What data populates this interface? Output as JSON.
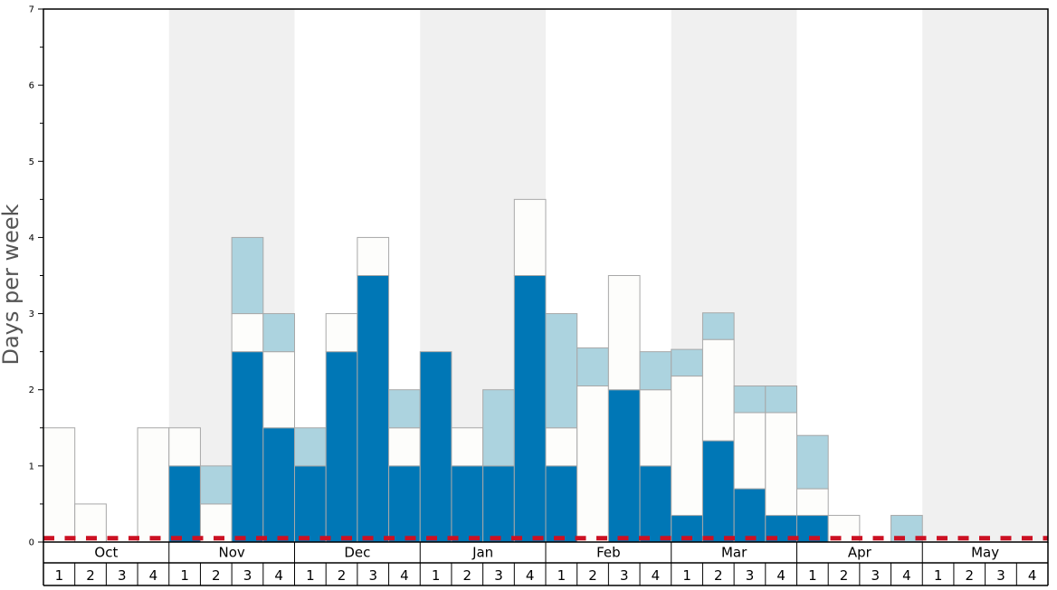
{
  "chart_data": {
    "type": "bar",
    "stacked": true,
    "ylabel": "Days per week",
    "ylim": [
      0,
      7
    ],
    "y_ticks": [
      "0",
      "1",
      "2",
      "3",
      "4",
      "5",
      "6",
      "7"
    ],
    "months": [
      "Oct",
      "Nov",
      "Dec",
      "Jan",
      "Feb",
      "Mar",
      "Apr",
      "May"
    ],
    "weeks": [
      "1",
      "2",
      "3",
      "4"
    ],
    "shaded_months": [
      "Nov",
      "Jan",
      "Mar",
      "May"
    ],
    "colors": {
      "dark": "#0077b6",
      "white": "#fdfdfb",
      "light": "#acd3df",
      "shade": "#f0f0f0",
      "dashed_line": "#cc1123",
      "bar_stroke": "#a8a8a8"
    },
    "dashed_line_value": 0.05,
    "series": [
      {
        "color": "dark",
        "values": [
          0,
          0,
          0,
          0,
          1,
          0,
          2.5,
          1.5,
          1,
          2.5,
          3.5,
          1,
          2.5,
          1,
          1,
          3.5,
          1,
          0,
          2,
          1,
          0.35,
          1.33,
          0.7,
          0.35,
          0.35,
          0,
          0,
          0,
          0,
          0,
          0,
          0
        ]
      },
      {
        "color": "white",
        "values": [
          1.5,
          0.5,
          0,
          1.5,
          0.5,
          0.5,
          0.5,
          1,
          0,
          0.5,
          0.5,
          0.5,
          0,
          0.5,
          0,
          1,
          0.5,
          2.05,
          1.5,
          1,
          1.83,
          1.33,
          1,
          1.35,
          0.35,
          0.35,
          0,
          0,
          0,
          0,
          0,
          0
        ]
      },
      {
        "color": "light",
        "values": [
          0,
          0,
          0,
          0,
          0,
          0.5,
          1,
          0.5,
          0.5,
          0,
          0,
          0.5,
          0,
          0,
          1,
          0,
          1.5,
          0.5,
          0,
          0.5,
          0.35,
          0.35,
          0.35,
          0.35,
          0.7,
          0,
          0,
          0.35,
          0,
          0,
          0,
          0
        ]
      }
    ]
  }
}
